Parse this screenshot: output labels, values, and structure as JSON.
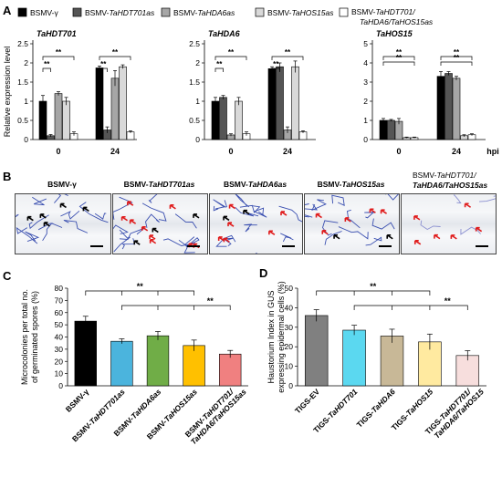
{
  "panels": {
    "A": "A",
    "B": "B",
    "C": "C",
    "D": "D"
  },
  "legend_a": [
    {
      "label": "BSMV-γ",
      "fill": "#000000"
    },
    {
      "label": "BSMV-TaHDT701as",
      "fill": "#555555"
    },
    {
      "label": "BSMV-TaHDA6as",
      "fill": "#a6a6a6"
    },
    {
      "label": "BSMV-TaHOS15as",
      "fill": "#d9d9d9"
    },
    {
      "label": "BSMV-TaHDT701/ TaHDA6/TaHOS15as",
      "fill": "#ffffff"
    }
  ],
  "chart_data": [
    {
      "type": "bar",
      "title": "TaHDT701",
      "ylabel": "Relative expression level",
      "categories": [
        "0",
        "24"
      ],
      "ylim": [
        0,
        2.5
      ],
      "yticks": [
        0,
        0.5,
        1,
        1.5,
        2,
        2.5
      ],
      "series": [
        {
          "name": "BSMV-γ",
          "values": [
            1.0,
            1.87
          ],
          "err": [
            0.15,
            0.05
          ]
        },
        {
          "name": "BSMV-TaHDT701as",
          "values": [
            0.1,
            0.25
          ],
          "err": [
            0.03,
            0.08
          ]
        },
        {
          "name": "BSMV-TaHDA6as",
          "values": [
            1.2,
            1.6
          ],
          "err": [
            0.05,
            0.2
          ]
        },
        {
          "name": "BSMV-TaHOS15as",
          "values": [
            1.0,
            1.9
          ],
          "err": [
            0.1,
            0.05
          ]
        },
        {
          "name": "BSMV-TaHDT701/TaHDA6/TaHOS15as",
          "values": [
            0.15,
            0.2
          ],
          "err": [
            0.05,
            0.03
          ]
        }
      ],
      "significance": [
        "**",
        "**",
        "**",
        "**"
      ]
    },
    {
      "type": "bar",
      "title": "TaHDA6",
      "categories": [
        "0",
        "24"
      ],
      "ylim": [
        0,
        2.5
      ],
      "yticks": [
        0,
        0.5,
        1,
        1.5,
        2,
        2.5
      ],
      "series": [
        {
          "name": "BSMV-γ",
          "values": [
            1.0,
            1.85
          ],
          "err": [
            0.1,
            0.05
          ]
        },
        {
          "name": "BSMV-TaHDT701as",
          "values": [
            1.1,
            1.9
          ],
          "err": [
            0.05,
            0.1
          ]
        },
        {
          "name": "BSMV-TaHDA6as",
          "values": [
            0.12,
            0.25
          ],
          "err": [
            0.03,
            0.08
          ]
        },
        {
          "name": "BSMV-TaHOS15as",
          "values": [
            1.0,
            1.9
          ],
          "err": [
            0.1,
            0.15
          ]
        },
        {
          "name": "BSMV-TaHDT701/TaHDA6/TaHOS15as",
          "values": [
            0.15,
            0.2
          ],
          "err": [
            0.05,
            0.03
          ]
        }
      ],
      "significance": [
        "**",
        "**",
        "**",
        "**"
      ]
    },
    {
      "type": "bar",
      "title": "TaHOS15",
      "xlabel": "hpi",
      "categories": [
        "0",
        "24"
      ],
      "ylim": [
        0,
        5
      ],
      "yticks": [
        0,
        1,
        2,
        3,
        4,
        5
      ],
      "series": [
        {
          "name": "BSMV-γ",
          "values": [
            1.0,
            3.3
          ],
          "err": [
            0.1,
            0.25
          ]
        },
        {
          "name": "BSMV-TaHDT701as",
          "values": [
            1.0,
            3.45
          ],
          "err": [
            0.05,
            0.1
          ]
        },
        {
          "name": "BSMV-TaHDA6as",
          "values": [
            0.95,
            3.2
          ],
          "err": [
            0.15,
            0.1
          ]
        },
        {
          "name": "BSMV-TaHOS15as",
          "values": [
            0.1,
            0.2
          ],
          "err": [
            0.03,
            0.05
          ]
        },
        {
          "name": "BSMV-TaHDT701/TaHDA6/TaHOS15as",
          "values": [
            0.1,
            0.25
          ],
          "err": [
            0.03,
            0.05
          ]
        }
      ],
      "significance": [
        "**",
        "**",
        "**",
        "**"
      ]
    },
    {
      "type": "bar",
      "ylabel": "Microcolonies per total no. of germinated spores (%)",
      "categories": [
        "BSMV-γ",
        "BSMV-TaHDT701as",
        "BSMV-TaHDA6as",
        "BSMV-TaHOS15as",
        "BSMV-TaHDT701/ TaHDA6/TaHOS15as"
      ],
      "values": [
        53,
        36.5,
        41,
        33,
        26
      ],
      "err": [
        4,
        2,
        3.5,
        4.5,
        3
      ],
      "colors": [
        "#000000",
        "#4bb4dd",
        "#70ad47",
        "#ffc000",
        "#f08080"
      ],
      "ylim": [
        0,
        80
      ],
      "yticks": [
        0,
        10,
        20,
        30,
        40,
        50,
        60,
        70,
        80
      ],
      "significance": [
        "**",
        "**"
      ]
    },
    {
      "type": "bar",
      "ylabel": "Haustorium Index in GUS expressing epidermal cells (%)",
      "categories": [
        "TIGS-EV",
        "TIGS-TaHDT701",
        "TIGS-TaHDA6",
        "TIGS-TaHOS15",
        "TIGS-TaHDT701/ TaHDA6/TaHOS15"
      ],
      "values": [
        36,
        28.5,
        25.5,
        22.5,
        15.5
      ],
      "err": [
        3,
        2.5,
        3.5,
        4,
        2.5
      ],
      "colors": [
        "#808080",
        "#5bd8f0",
        "#c8b897",
        "#ffeaa0",
        "#f7dedd"
      ],
      "ylim": [
        0,
        50
      ],
      "yticks": [
        0,
        10,
        20,
        30,
        40,
        50
      ],
      "significance": [
        "**",
        "**"
      ]
    }
  ],
  "micrographs": [
    "BSMV-γ",
    "BSMV-TaHDT701as",
    "BSMV-TaHDA6as",
    "BSMV-TaHOS15as",
    "BSMV-TaHDT701/ TaHDA6/TaHOS15as"
  ]
}
